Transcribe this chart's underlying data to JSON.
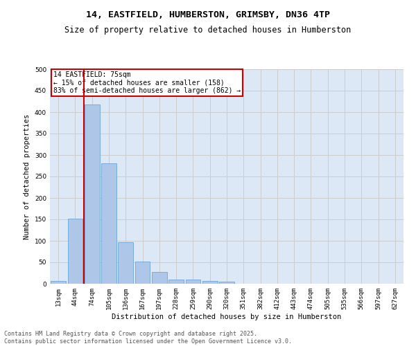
{
  "title_line1": "14, EASTFIELD, HUMBERSTON, GRIMSBY, DN36 4TP",
  "title_line2": "Size of property relative to detached houses in Humberston",
  "xlabel": "Distribution of detached houses by size in Humberston",
  "ylabel": "Number of detached properties",
  "categories": [
    "13sqm",
    "44sqm",
    "74sqm",
    "105sqm",
    "136sqm",
    "167sqm",
    "197sqm",
    "228sqm",
    "259sqm",
    "290sqm",
    "320sqm",
    "351sqm",
    "382sqm",
    "412sqm",
    "443sqm",
    "474sqm",
    "505sqm",
    "535sqm",
    "566sqm",
    "597sqm",
    "627sqm"
  ],
  "values": [
    6,
    152,
    418,
    280,
    96,
    52,
    28,
    10,
    9,
    7,
    5,
    0,
    0,
    0,
    0,
    0,
    0,
    0,
    0,
    0,
    0
  ],
  "bar_color": "#aec6e8",
  "bar_edge_color": "#5b9bd5",
  "highlight_x": "74sqm",
  "highlight_color": "#cc0000",
  "annotation_title": "14 EASTFIELD: 75sqm",
  "annotation_line1": "← 15% of detached houses are smaller (158)",
  "annotation_line2": "83% of semi-detached houses are larger (862) →",
  "annotation_box_color": "#cc0000",
  "ylim": [
    0,
    500
  ],
  "yticks": [
    0,
    50,
    100,
    150,
    200,
    250,
    300,
    350,
    400,
    450,
    500
  ],
  "grid_color": "#cccccc",
  "bg_color": "#dce8f5",
  "footer_line1": "Contains HM Land Registry data © Crown copyright and database right 2025.",
  "footer_line2": "Contains public sector information licensed under the Open Government Licence v3.0.",
  "title_fontsize": 9.5,
  "subtitle_fontsize": 8.5,
  "axis_label_fontsize": 7.5,
  "tick_fontsize": 6.5,
  "annotation_fontsize": 7,
  "footer_fontsize": 6
}
